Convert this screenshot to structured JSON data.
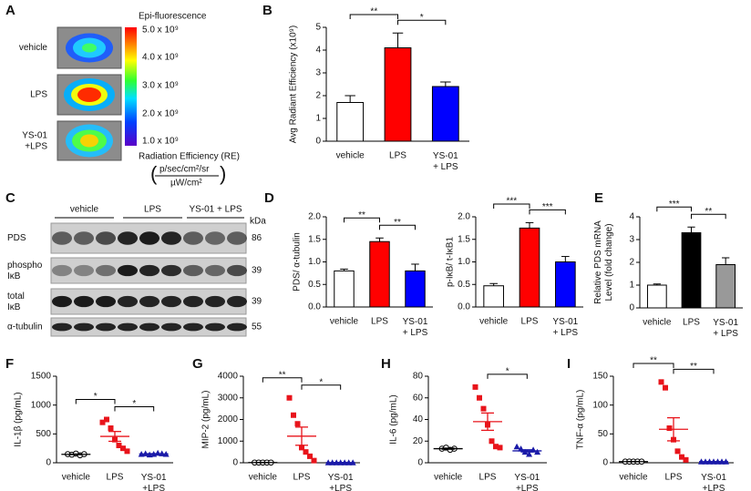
{
  "panel_a": {
    "label": "A",
    "rows": [
      "vehicle",
      "LPS",
      "YS-01\n+LPS"
    ],
    "colorbar": {
      "title": "Epi-fluorescence",
      "ticks": [
        "5.0 x 10⁹",
        "4.0 x 10⁹",
        "3.0 x 10⁹",
        "2.0 x 10⁹",
        "1.0 x 10⁹"
      ],
      "caption": "Radiation Efficiency (RE)",
      "unit_top": "p/sec/cm²/sr",
      "unit_bottom": "µW/cm²"
    }
  },
  "panel_c": {
    "label": "C",
    "groups": [
      "vehicle",
      "LPS",
      "YS-01 + LPS"
    ],
    "unit": "kDa",
    "rows": [
      {
        "name": "PDS",
        "kda": "86"
      },
      {
        "name": "phospho\nIκB",
        "kda": "39"
      },
      {
        "name": "total\nIκB",
        "kda": "39"
      },
      {
        "name": "α-tubulin",
        "kda": "55"
      }
    ]
  },
  "chart_data": [
    {
      "type": "bar",
      "panel": "B",
      "ylabel": "Avg Radiant Efficiency (x10⁹)",
      "categories": [
        "vehicle",
        "LPS",
        "YS-01\n+ LPS"
      ],
      "values": [
        1.7,
        4.1,
        2.4
      ],
      "errors": [
        0.3,
        0.65,
        0.2
      ],
      "colors": [
        "#ffffff",
        "#ff0000",
        "#0000ff"
      ],
      "ylim": [
        0,
        5
      ],
      "yticks": [
        0,
        1,
        2,
        3,
        4,
        5
      ],
      "significance": [
        {
          "from": 0,
          "to": 1,
          "label": "**"
        },
        {
          "from": 1,
          "to": 2,
          "label": "*"
        }
      ]
    },
    {
      "type": "bar",
      "panel": "D",
      "ylabel": "PDS/ α-tubulin",
      "categories": [
        "vehicle",
        "LPS",
        "YS-01\n+ LPS"
      ],
      "values": [
        0.8,
        1.45,
        0.8
      ],
      "errors": [
        0.04,
        0.08,
        0.15
      ],
      "colors": [
        "#ffffff",
        "#ff0000",
        "#0000ff"
      ],
      "ylim": [
        0,
        2
      ],
      "yticks": [
        {
          "value": 0,
          "label": "0.0"
        },
        0.5,
        {
          "value": 1,
          "label": "1.0"
        },
        1.5,
        {
          "value": 2,
          "label": "2.0"
        }
      ],
      "significance": [
        {
          "from": 0,
          "to": 1,
          "label": "**"
        },
        {
          "from": 1,
          "to": 2,
          "label": "**"
        }
      ]
    },
    {
      "type": "bar",
      "ylabel": "p-IκB/ t-IκB1",
      "categories": [
        "vehicle",
        "LPS",
        "YS-01\n+ LPS"
      ],
      "values": [
        0.47,
        1.75,
        1.0
      ],
      "errors": [
        0.05,
        0.12,
        0.12
      ],
      "colors": [
        "#ffffff",
        "#ff0000",
        "#0000ff"
      ],
      "ylim": [
        0,
        2
      ],
      "yticks": [
        {
          "value": 0,
          "label": "0.0"
        },
        0.5,
        {
          "value": 1,
          "label": "1.0"
        },
        1.5,
        {
          "value": 2,
          "label": "2.0"
        }
      ],
      "significance": [
        {
          "from": 0,
          "to": 1,
          "label": "***"
        },
        {
          "from": 1,
          "to": 2,
          "label": "***"
        }
      ]
    },
    {
      "type": "bar",
      "panel": "E",
      "ylabel": "Relative PDS mRNA\nLevel (fold change)",
      "categories": [
        "vehicle",
        "LPS",
        "YS-01\n+ LPS"
      ],
      "values": [
        1.0,
        3.3,
        1.9
      ],
      "errors": [
        0.05,
        0.25,
        0.3
      ],
      "colors": [
        "#ffffff",
        "#000000",
        "#999999"
      ],
      "ylim": [
        0,
        4
      ],
      "yticks": [
        0,
        1,
        2,
        3,
        4
      ],
      "significance": [
        {
          "from": 0,
          "to": 1,
          "label": "***"
        },
        {
          "from": 1,
          "to": 2,
          "label": "**"
        }
      ]
    },
    {
      "type": "dot",
      "panel": "F",
      "ylabel": "IL-1β (pg/mL)",
      "categories": [
        "vehicle",
        "LPS",
        "YS-01\n+LPS"
      ],
      "points": [
        [
          150,
          140,
          160,
          130,
          150
        ],
        [
          700,
          750,
          600,
          400,
          300,
          250,
          200
        ],
        [
          150,
          160,
          140,
          150,
          170,
          160,
          150
        ]
      ],
      "means": [
        146,
        457,
        154
      ],
      "errors": [
        5,
        85,
        4
      ],
      "colors": [
        "#000000",
        "#e8141b",
        "#1a1aa8"
      ],
      "markers": [
        "circle-open",
        "square",
        "triangle"
      ],
      "ylim": [
        0,
        1500
      ],
      "yticks": [
        0,
        500,
        1000,
        1500
      ],
      "significance": [
        {
          "from": 0,
          "to": 1,
          "label": "*"
        },
        {
          "from": 1,
          "to": 2,
          "label": "*"
        }
      ]
    },
    {
      "type": "dot",
      "panel": "G",
      "ylabel": "MIP-2 (pg/mL)",
      "categories": [
        "vehicle",
        "LPS",
        "YS-01\n+LPS"
      ],
      "points": [
        [
          10,
          10,
          10,
          10,
          10
        ],
        [
          3000,
          2200,
          1800,
          700,
          500,
          300,
          100
        ],
        [
          10,
          10,
          10,
          10,
          10,
          10,
          10
        ]
      ],
      "means": [
        10,
        1229,
        10
      ],
      "errors": [
        0,
        420,
        0
      ],
      "colors": [
        "#000000",
        "#e8141b",
        "#1a1aa8"
      ],
      "markers": [
        "circle-open",
        "square",
        "triangle"
      ],
      "ylim": [
        0,
        4000
      ],
      "yticks": [
        0,
        1000,
        2000,
        3000,
        4000
      ],
      "significance": [
        {
          "from": 0,
          "to": 1,
          "label": "**"
        },
        {
          "from": 1,
          "to": 2,
          "label": "*"
        }
      ]
    },
    {
      "type": "dot",
      "panel": "H",
      "ylabel": "IL-6 (pg/mL)",
      "categories": [
        "vehicle",
        "LPS",
        "YS-01\n+LPS"
      ],
      "points": [
        [
          13,
          14,
          12,
          13
        ],
        [
          70,
          60,
          50,
          35,
          20,
          15,
          14
        ],
        [
          15,
          13,
          10,
          8,
          12,
          10
        ]
      ],
      "means": [
        13,
        38,
        11
      ],
      "errors": [
        0.5,
        8,
        1
      ],
      "colors": [
        "#000000",
        "#e8141b",
        "#1a1aa8"
      ],
      "markers": [
        "circle-open",
        "square",
        "triangle"
      ],
      "ylim": [
        0,
        80
      ],
      "yticks": [
        0,
        20,
        40,
        60,
        80
      ],
      "significance": [
        {
          "from": 1,
          "to": 2,
          "label": "*"
        }
      ]
    },
    {
      "type": "dot",
      "panel": "I",
      "ylabel": "TNF-α (pg/mL)",
      "categories": [
        "vehicle",
        "LPS",
        "YS-01\n+LPS"
      ],
      "points": [
        [
          2,
          2,
          2,
          2,
          2
        ],
        [
          140,
          130,
          60,
          40,
          20,
          10,
          5
        ],
        [
          2,
          2,
          2,
          2,
          2,
          2,
          2
        ]
      ],
      "means": [
        2,
        58,
        2
      ],
      "errors": [
        0,
        20,
        0
      ],
      "colors": [
        "#000000",
        "#e8141b",
        "#1a1aa8"
      ],
      "markers": [
        "circle-open",
        "square",
        "triangle"
      ],
      "ylim": [
        0,
        150
      ],
      "yticks": [
        0,
        50,
        100,
        150
      ],
      "significance": [
        {
          "from": 0,
          "to": 1,
          "label": "**"
        },
        {
          "from": 1,
          "to": 2,
          "label": "**"
        }
      ]
    }
  ]
}
